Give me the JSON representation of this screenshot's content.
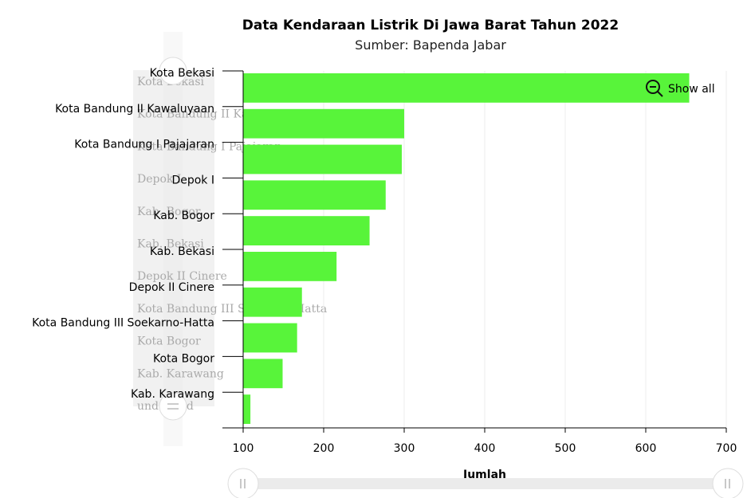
{
  "chart_data": {
    "type": "bar",
    "orientation": "horizontal",
    "title": "Data Kendaraan Listrik Di Jawa Barat Tahun 2022",
    "subtitle": "Sumber: Bapenda Jabar",
    "xlabel": "Jumlah",
    "ylabel": "",
    "xlim": [
      100,
      700
    ],
    "xticks": [
      100,
      200,
      300,
      400,
      500,
      600,
      700
    ],
    "grid": true,
    "categories": [
      "Kota Bekasi",
      "Kota Bandung II Kawaluyaan",
      "Kota Bandung I Pajajaran",
      "Depok I",
      "Kab. Bogor",
      "Kab. Bekasi",
      "Depok II Cinere",
      "Kota Bandung III Soekarno-Hatta",
      "Kota Bogor",
      "Kab. Karawang"
    ],
    "values": [
      654,
      300,
      297,
      277,
      257,
      216,
      173,
      167,
      149,
      109
    ],
    "bar_color": "#58f43a"
  },
  "navigator": {
    "labels": [
      "Kota Bekasi",
      "Kota Bandung II Kawaluyaan",
      "Kota Bandung I Pajajaran",
      "Depok I",
      "Kab. Bogor",
      "Kab. Bekasi",
      "Depok II Cinere",
      "Kota Bandung III Soekarno-Hatta",
      "Kota Bogor",
      "Kab. Karawang",
      "undefined"
    ]
  },
  "zoom": {
    "reset_label": "Show all",
    "icon": "zoom-out-icon"
  }
}
